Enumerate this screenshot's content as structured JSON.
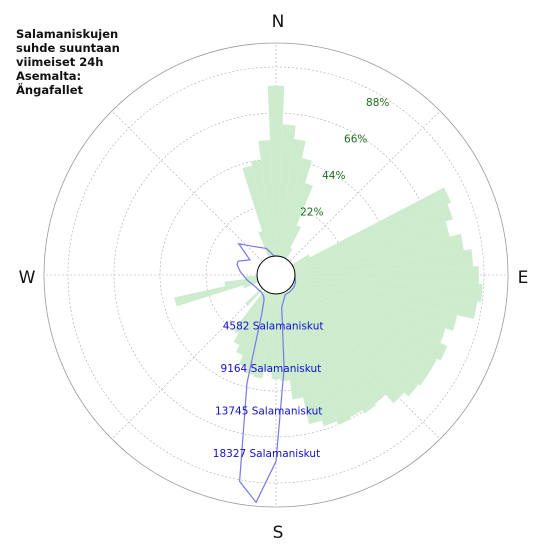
{
  "title": "Salamaniskujen\nsuhde suuntaan\nviimeiset 24h\nAsemalta:\nÄngafallet",
  "compass": {
    "n": "N",
    "e": "E",
    "s": "S",
    "w": "W"
  },
  "colors": {
    "percent_fill": "#cdeccd",
    "percent_label": "#1a6e1a",
    "count_line": "#7777ee",
    "count_label": "#1111cc",
    "grid": "#aaaaaa"
  },
  "chart_data": {
    "type": "polar-rose",
    "title": "Salamaniskujen suhde suuntaan viimeiset 24h Asemalta: Ängafallet",
    "direction_step_deg": 5,
    "percent_ring_labels": [
      "22%",
      "44%",
      "66%",
      "88%"
    ],
    "percent_ring_values": [
      22,
      44,
      66,
      88
    ],
    "percent_max": 110,
    "count_ring_labels": [
      "4582 Salamaniskut",
      "9164 Salamaniskut",
      "13745 Salamaniskut",
      "18327 Salamaniskut"
    ],
    "count_ring_values": [
      4582,
      9164,
      13745,
      18327
    ],
    "count_max": 22909,
    "percent_series": {
      "name": "",
      "directions": [
        0,
        5,
        10,
        15,
        20,
        25,
        30,
        60,
        65,
        70,
        75,
        80,
        85,
        90,
        95,
        100,
        105,
        110,
        115,
        120,
        125,
        130,
        135,
        140,
        145,
        150,
        155,
        160,
        165,
        170,
        175,
        180,
        185,
        190,
        195,
        200,
        205,
        210,
        215,
        225,
        250,
        255,
        260,
        265,
        340,
        345,
        350,
        355
      ],
      "values": [
        88,
        68,
        61,
        52,
        40,
        18,
        6,
        10,
        88,
        86,
        82,
        88,
        92,
        95,
        97,
        95,
        86,
        82,
        86,
        84,
        84,
        83,
        80,
        74,
        75,
        73,
        74,
        72,
        69,
        55,
        45,
        44,
        40,
        44,
        43,
        40,
        35,
        31,
        26,
        12,
        8,
        44,
        17,
        6,
        14,
        48,
        50,
        60
      ]
    },
    "count_series": {
      "name": "",
      "directions": [
        0,
        20,
        40,
        60,
        80,
        95,
        110,
        125,
        140,
        155,
        170,
        175,
        180,
        185,
        190,
        195,
        200,
        205,
        210,
        220,
        240,
        260,
        275,
        285,
        290,
        300,
        310,
        320,
        340,
        355
      ],
      "values": [
        0,
        0,
        0,
        0,
        0,
        0,
        200,
        300,
        300,
        300,
        1500,
        8000,
        18000,
        22500,
        20500,
        10000,
        2500,
        1000,
        600,
        400,
        500,
        1100,
        1800,
        2300,
        2300,
        1200,
        3200,
        2000,
        1000,
        0
      ]
    }
  }
}
